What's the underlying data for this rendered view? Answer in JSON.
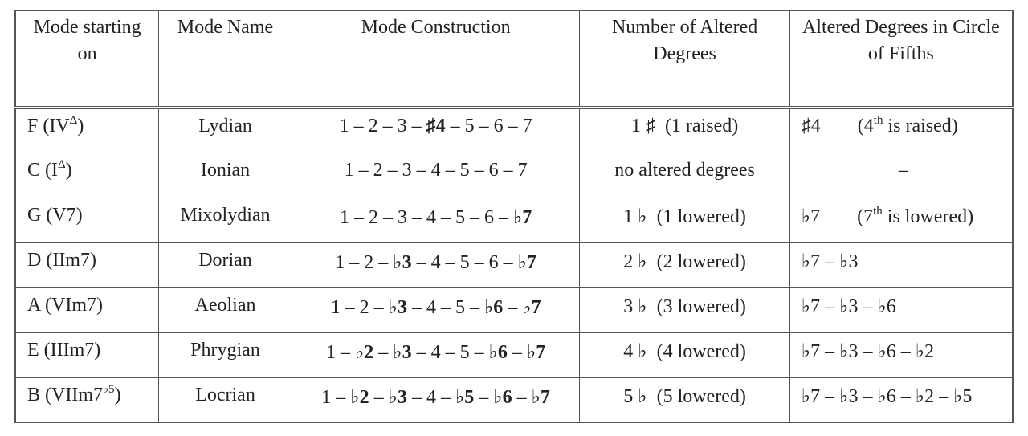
{
  "table": {
    "header": [
      "Mode starting on",
      "Mode Name",
      "Mode Construction",
      "Number of Altered Degrees",
      "Altered Degrees in Circle of Fifths"
    ],
    "rows": [
      {
        "start": [
          {
            "text": "F (IV"
          },
          {
            "text": "Δ",
            "sup": true
          },
          {
            "text": ")"
          }
        ],
        "name": "Lydian",
        "construction": [
          {
            "text": "1 – 2 – 3 – "
          },
          {
            "text": "♯4",
            "bold": true
          },
          {
            "text": " – 5 – 6 – 7"
          }
        ],
        "count": "1 ♯  (1 raised)",
        "circle": {
          "degrees": "♯4",
          "note": [
            {
              "text": "(4"
            },
            {
              "text": "th",
              "sup": true
            },
            {
              "text": " is raised)"
            }
          ]
        }
      },
      {
        "start": [
          {
            "text": "C (I"
          },
          {
            "text": "Δ",
            "sup": true
          },
          {
            "text": ")"
          }
        ],
        "name": "Ionian",
        "construction": [
          {
            "text": "1 – 2 – 3 – 4 – 5 – 6 – 7"
          }
        ],
        "count": "no altered degrees",
        "circle": {
          "degrees": "–"
        }
      },
      {
        "start": [
          {
            "text": "G (V7)"
          }
        ],
        "name": "Mixolydian",
        "construction": [
          {
            "text": "1 – 2 – 3 – 4 – 5 – 6 – "
          },
          {
            "text": "♭7",
            "bold": true
          }
        ],
        "count": "1 ♭  (1 lowered)",
        "circle": {
          "degrees": "♭7",
          "note": [
            {
              "text": "(7"
            },
            {
              "text": "th",
              "sup": true
            },
            {
              "text": " is lowered)"
            }
          ]
        }
      },
      {
        "start": [
          {
            "text": "D (IIm7)"
          }
        ],
        "name": "Dorian",
        "construction": [
          {
            "text": "1 – 2 – "
          },
          {
            "text": "♭3",
            "bold": true
          },
          {
            "text": " – 4 – 5 – 6 – "
          },
          {
            "text": "♭7",
            "bold": true
          }
        ],
        "count": "2 ♭  (2 lowered)",
        "circle": {
          "degrees": "♭7 – ♭3"
        }
      },
      {
        "start": [
          {
            "text": "A (VIm7)"
          }
        ],
        "name": "Aeolian",
        "construction": [
          {
            "text": "1 – 2 – "
          },
          {
            "text": "♭3",
            "bold": true
          },
          {
            "text": " – 4 – 5 – "
          },
          {
            "text": "♭6",
            "bold": true
          },
          {
            "text": " – "
          },
          {
            "text": "♭7",
            "bold": true
          }
        ],
        "count": "3 ♭  (3 lowered)",
        "circle": {
          "degrees": "♭7 – ♭3 – ♭6"
        }
      },
      {
        "start": [
          {
            "text": "E (IIIm7)"
          }
        ],
        "name": "Phrygian",
        "construction": [
          {
            "text": "1 – "
          },
          {
            "text": "♭2",
            "bold": true
          },
          {
            "text": " – "
          },
          {
            "text": "♭3",
            "bold": true
          },
          {
            "text": " – 4 – 5 – "
          },
          {
            "text": "♭6",
            "bold": true
          },
          {
            "text": " – "
          },
          {
            "text": "♭7",
            "bold": true
          }
        ],
        "count": "4 ♭  (4 lowered)",
        "circle": {
          "degrees": "♭7 – ♭3 – ♭6 – ♭2"
        }
      },
      {
        "start": [
          {
            "text": "B (VIIm7"
          },
          {
            "text": "♭5",
            "sup": true
          },
          {
            "text": ")"
          }
        ],
        "name": "Locrian",
        "construction": [
          {
            "text": "1 – "
          },
          {
            "text": "♭2",
            "bold": true
          },
          {
            "text": " – "
          },
          {
            "text": "♭3",
            "bold": true
          },
          {
            "text": " – 4 – "
          },
          {
            "text": "♭5",
            "bold": true
          },
          {
            "text": " – "
          },
          {
            "text": "♭6",
            "bold": true
          },
          {
            "text": " – "
          },
          {
            "text": "♭7",
            "bold": true
          }
        ],
        "count": "5 ♭  (5 lowered)",
        "circle": {
          "degrees": "♭7 – ♭3 – ♭6 – ♭2 – ♭5"
        }
      }
    ]
  }
}
